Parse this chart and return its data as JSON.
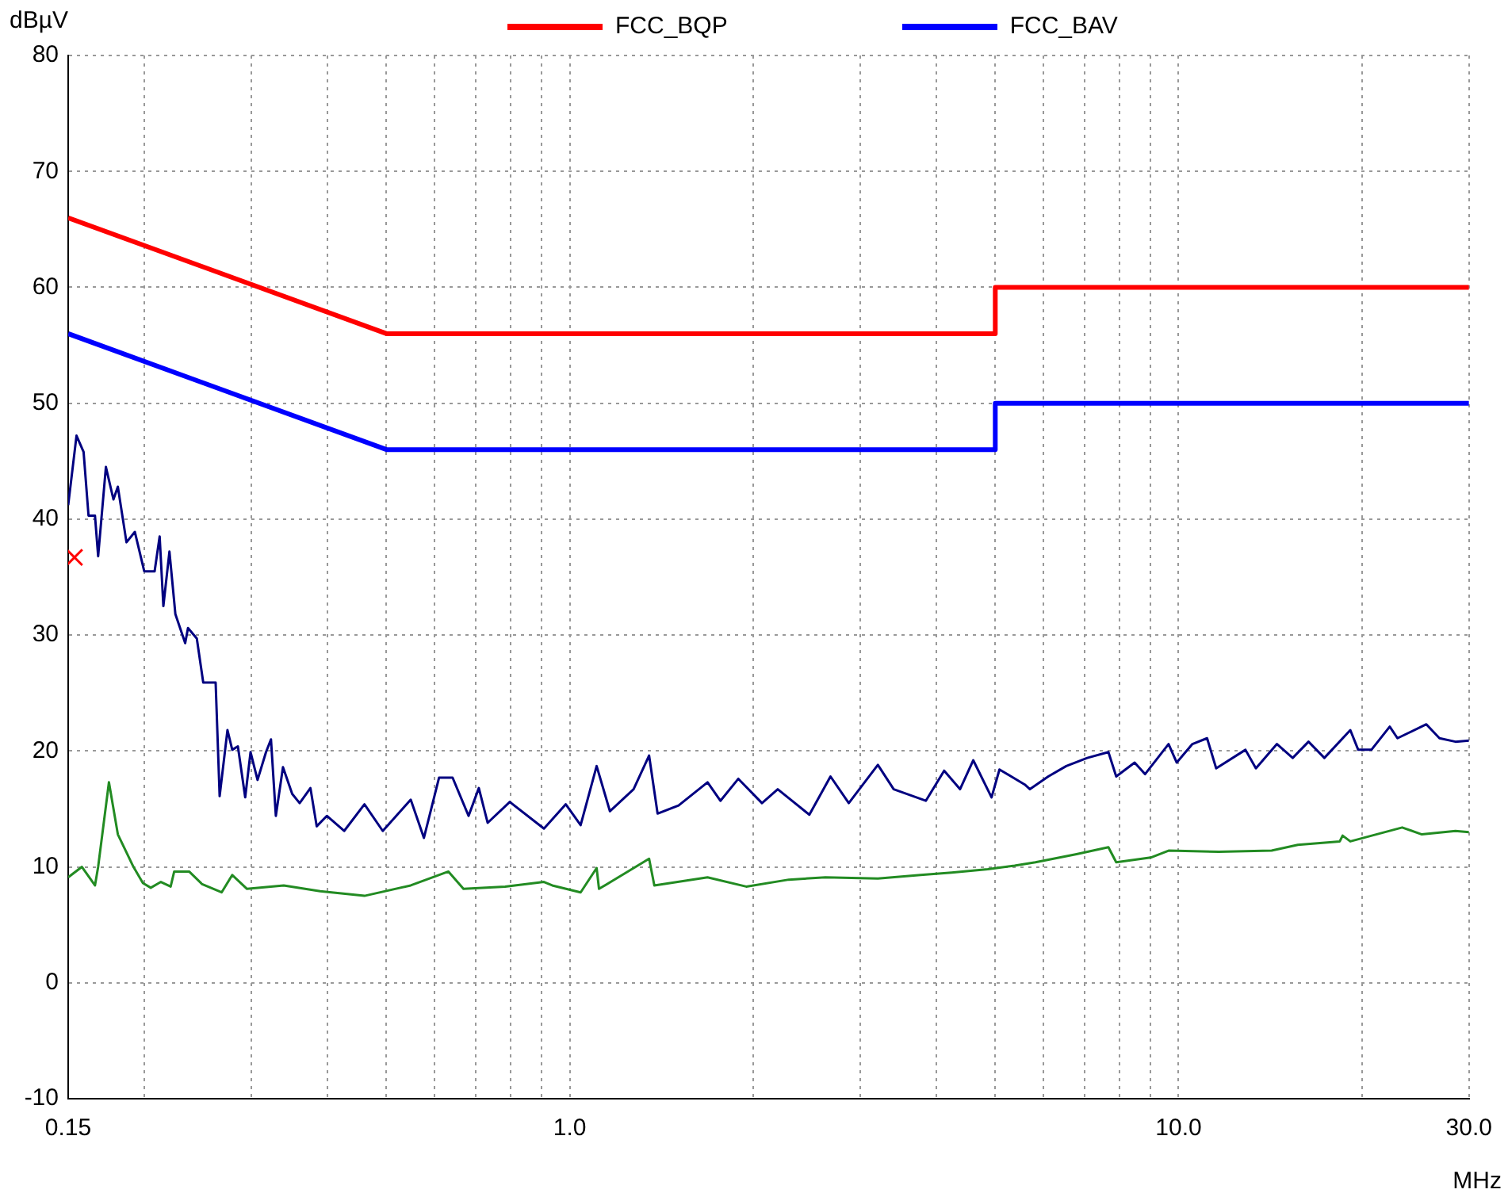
{
  "chart_data": {
    "type": "line",
    "xlabel": "MHz",
    "ylabel": "dBµV",
    "log": "x",
    "grid": true,
    "legend": "top",
    "marker": "none",
    "xlim": [
      0.15,
      30
    ],
    "ylim": [
      -10,
      80
    ],
    "xticks": [
      {
        "value": 0.15,
        "label": "0.15"
      },
      {
        "value": 0.2,
        "label": null
      },
      {
        "value": 0.3,
        "label": null
      },
      {
        "value": 0.4,
        "label": null
      },
      {
        "value": 0.5,
        "label": null
      },
      {
        "value": 0.6,
        "label": null
      },
      {
        "value": 0.7,
        "label": null
      },
      {
        "value": 0.8,
        "label": null
      },
      {
        "value": 0.9,
        "label": null
      },
      {
        "value": 1,
        "label": "1.0"
      },
      {
        "value": 2,
        "label": null
      },
      {
        "value": 3,
        "label": null
      },
      {
        "value": 4,
        "label": null
      },
      {
        "value": 5,
        "label": null
      },
      {
        "value": 6,
        "label": null
      },
      {
        "value": 7,
        "label": null
      },
      {
        "value": 8,
        "label": null
      },
      {
        "value": 9,
        "label": null
      },
      {
        "value": 10,
        "label": "10.0"
      },
      {
        "value": 20,
        "label": null
      },
      {
        "value": 30,
        "label": "30.0"
      }
    ],
    "yticks": [
      -10,
      0,
      10,
      20,
      30,
      40,
      50,
      60,
      70,
      80
    ],
    "series": [
      {
        "name": "FCC_BQP",
        "color": "#ff0000",
        "x": [
          0.15,
          0.5,
          5,
          5,
          30
        ],
        "values": [
          66,
          56,
          56,
          60,
          60
        ]
      },
      {
        "name": "FCC_BAV",
        "color": "#0000ff",
        "x": [
          0.15,
          0.5,
          5,
          5,
          30
        ],
        "values": [
          56,
          46,
          46,
          50,
          50
        ]
      },
      {
        "color": "#000080",
        "x": [
          0.15,
          0.1548,
          0.159,
          0.162,
          0.166,
          0.168,
          0.173,
          0.178,
          0.181,
          0.187,
          0.193,
          0.2,
          0.208,
          0.212,
          0.215,
          0.22,
          0.225,
          0.2335,
          0.236,
          0.244,
          0.25,
          0.262,
          0.266,
          0.274,
          0.279,
          0.285,
          0.293,
          0.299,
          0.307,
          0.317,
          0.323,
          0.329,
          0.338,
          0.35,
          0.36,
          0.375,
          0.384,
          0.399,
          0.426,
          0.46,
          0.493,
          0.548,
          0.576,
          0.61,
          0.642,
          0.682,
          0.709,
          0.733,
          0.797,
          0.907,
          0.985,
          1.042,
          1.107,
          1.164,
          1.273,
          1.35,
          1.394,
          1.509,
          1.684,
          1.768,
          1.892,
          2.069,
          2.196,
          2.475,
          2.681,
          2.873,
          3.207,
          3.405,
          3.845,
          4.121,
          4.376,
          4.6,
          4.93,
          5.08,
          5.59,
          5.7,
          6.11,
          6.54,
          7.08,
          7.67,
          7.9,
          8.47,
          8.81,
          9.63,
          9.93,
          10.54,
          11.14,
          11.53,
          12.88,
          13.4,
          14.51,
          15.4,
          16.35,
          17.36,
          19.15,
          19.73,
          20.74,
          22.23,
          22.89,
          25.53,
          26.83,
          28.5,
          30
        ],
        "values": [
          41.2,
          47.2,
          45.8,
          40.3,
          40.3,
          36.8,
          44.5,
          41.7,
          42.8,
          38.0,
          38.9,
          35.5,
          35.5,
          38.5,
          32.5,
          37.2,
          31.8,
          29.3,
          30.6,
          29.7,
          25.9,
          25.9,
          16.1,
          21.8,
          20.1,
          20.4,
          16.0,
          19.9,
          17.5,
          19.9,
          21.0,
          14.4,
          18.6,
          16.3,
          15.5,
          16.8,
          13.5,
          14.4,
          13.1,
          15.4,
          13.1,
          15.8,
          12.5,
          17.7,
          17.7,
          14.4,
          16.8,
          13.8,
          15.6,
          13.3,
          15.4,
          13.6,
          18.7,
          14.8,
          16.7,
          19.6,
          14.6,
          15.3,
          17.3,
          15.7,
          17.6,
          15.5,
          16.7,
          14.5,
          17.8,
          15.5,
          18.8,
          16.7,
          15.7,
          18.3,
          16.7,
          19.2,
          16.0,
          18.4,
          17.1,
          16.7,
          17.8,
          18.7,
          19.4,
          19.9,
          17.8,
          19.0,
          18.0,
          20.6,
          19.0,
          20.6,
          21.1,
          18.5,
          20.1,
          18.5,
          20.6,
          19.4,
          20.8,
          19.4,
          21.8,
          20.1,
          20.1,
          22.1,
          21.1,
          22.3,
          21.1,
          20.8,
          20.9
        ]
      },
      {
        "color": "#228b22",
        "x": [
          0.15,
          0.158,
          0.166,
          0.168,
          0.175,
          0.181,
          0.192,
          0.199,
          0.205,
          0.213,
          0.221,
          0.224,
          0.237,
          0.249,
          0.268,
          0.279,
          0.295,
          0.339,
          0.389,
          0.46,
          0.548,
          0.632,
          0.669,
          0.783,
          0.907,
          0.936,
          1.042,
          1.107,
          1.117,
          1.35,
          1.377,
          1.684,
          1.949,
          2.29,
          2.63,
          3.207,
          3.77,
          4.24,
          4.86,
          5.38,
          5.82,
          6.8,
          7.67,
          7.9,
          9.0,
          9.63,
          11.65,
          14.22,
          15.7,
          18.4,
          18.6,
          19.15,
          23.3,
          25.1,
          28.5,
          30
        ],
        "values": [
          9.1,
          10.0,
          8.4,
          10.0,
          17.3,
          12.8,
          10.0,
          8.6,
          8.2,
          8.7,
          8.3,
          9.6,
          9.6,
          8.5,
          7.8,
          9.3,
          8.1,
          8.4,
          7.9,
          7.5,
          8.4,
          9.6,
          8.1,
          8.3,
          8.7,
          8.4,
          7.8,
          9.9,
          8.1,
          10.7,
          8.4,
          9.1,
          8.3,
          8.9,
          9.1,
          9.0,
          9.3,
          9.5,
          9.8,
          10.1,
          10.4,
          11.1,
          11.7,
          10.4,
          10.8,
          11.4,
          11.3,
          11.4,
          11.9,
          12.2,
          12.7,
          12.2,
          13.4,
          12.8,
          13.1,
          13.0
        ]
      },
      {
        "type": "scatter",
        "color": "#ff0000",
        "marker": "cross",
        "x": [
          0.1536
        ],
        "values": [
          36.7
        ]
      }
    ]
  }
}
